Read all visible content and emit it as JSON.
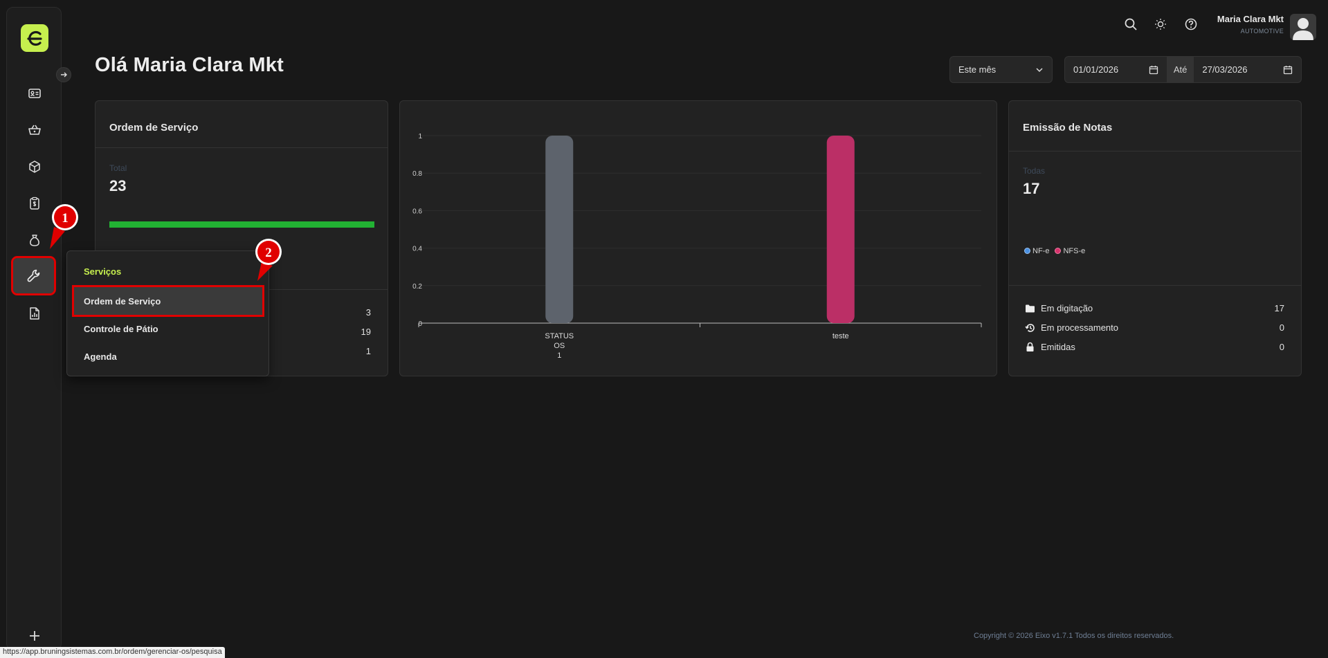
{
  "header": {
    "user_name": "Maria Clara Mkt",
    "user_role": "AUTOMOTIVE",
    "greeting": "Olá Maria Clara Mkt"
  },
  "filters": {
    "period": "Este mês",
    "date_from": "01/01/2026",
    "until_label": "Até",
    "date_to": "27/03/2026"
  },
  "os_card": {
    "title": "Ordem de Serviço",
    "total_label": "Total",
    "total_value": "23",
    "progress": 1.0,
    "values": [
      "3",
      "19",
      "1"
    ]
  },
  "chart_data": {
    "type": "bar",
    "categories": [
      "STATUS OS 1",
      "teste"
    ],
    "category_lines": [
      [
        "STATUS",
        "OS",
        "1"
      ],
      [
        "teste"
      ]
    ],
    "values": [
      1,
      1
    ],
    "colors": [
      "#5d636c",
      "#bb2f66"
    ],
    "ylim": [
      0,
      1
    ],
    "yticks": [
      "0",
      "0.2",
      "0.4",
      "0.6",
      "0.8",
      "1"
    ],
    "grid": true
  },
  "notes_card": {
    "title": "Emissão de Notas",
    "total_label": "Todas",
    "total_value": "17",
    "legend": [
      {
        "label": "NF-e",
        "color": "#4a90e2"
      },
      {
        "label": "NFS-e",
        "color": "#d6336c"
      }
    ],
    "rows": [
      {
        "label": "Em digitação",
        "value": "17",
        "icon": "folder-icon"
      },
      {
        "label": "Em processamento",
        "value": "0",
        "icon": "history-icon"
      },
      {
        "label": "Emitidas",
        "value": "0",
        "icon": "lock-icon"
      }
    ]
  },
  "popup_menu": {
    "heading": "Serviços",
    "items": [
      "Ordem de Serviço",
      "Controle de Pátio",
      "Agenda"
    ]
  },
  "markers": [
    "1",
    "2"
  ],
  "footer": "Copyright © 2026 Eixo v1.7.1 Todos os direitos reservados.",
  "status_url": "https://app.bruningsistemas.com.br/ordem/gerenciar-os/pesquisa",
  "colors": {
    "accent": "#c6ef4e",
    "highlight": "#e00000",
    "progress": "#22b233"
  }
}
